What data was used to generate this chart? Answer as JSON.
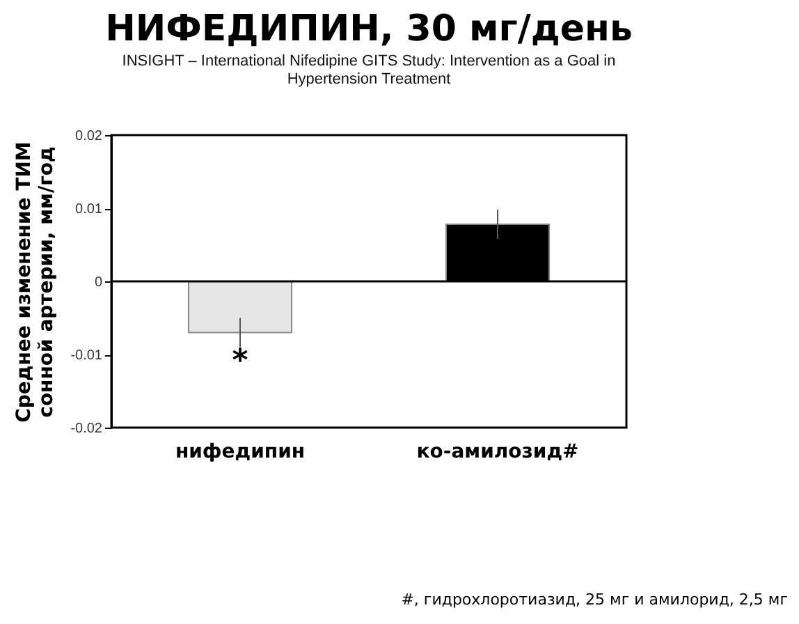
{
  "chart_data": {
    "type": "bar",
    "title": "НИФЕДИПИН, 30 мг/день",
    "subtitle": "INSIGHT – International Nifedipine GITS Study: Intervention as a Goal in Hypertension Treatment",
    "ylabel": "Среднее изменение ТИМ сонной артерии, мм/год",
    "categories": [
      "нифедипин",
      "ко-амилозид#"
    ],
    "values": [
      -0.007,
      0.0078
    ],
    "colors": [
      "#e6e6e6",
      "#000000"
    ],
    "errors": [
      0.002,
      0.002
    ],
    "ylim": [
      -0.02,
      0.02
    ],
    "yticks": [
      -0.02,
      -0.01,
      0,
      0.01,
      0.02
    ],
    "ref_lines": [
      {
        "axis": "y",
        "value": 0,
        "color": "#000000"
      }
    ],
    "annotations": [
      {
        "text": "*",
        "x": "нифедипин",
        "y": -0.0097
      },
      "#, гидрохлоротиазид, 25 мг и амилорид, 2,5 мг"
    ],
    "grid": false
  }
}
